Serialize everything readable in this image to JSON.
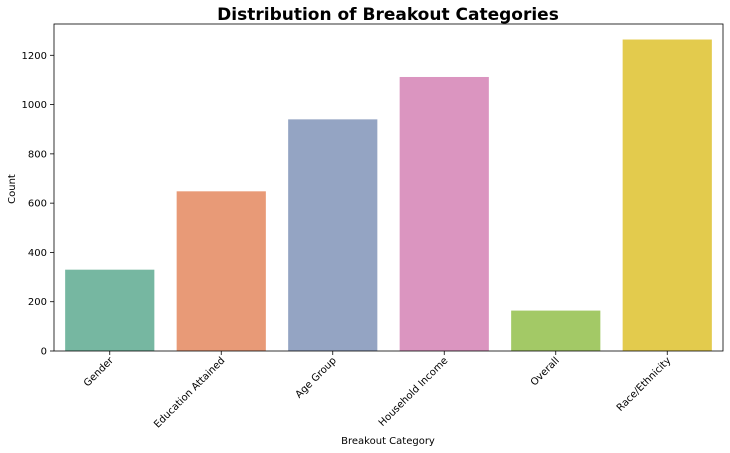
{
  "chart_data": {
    "type": "bar",
    "title": "Distribution of Breakout Categories",
    "xlabel": "Breakout Category",
    "ylabel": "Count",
    "categories": [
      "Gender",
      "Education Attained",
      "Age Group",
      "Household Income",
      "Overall",
      "Race/Ethnicity"
    ],
    "values": [
      330,
      648,
      940,
      1112,
      164,
      1264
    ],
    "colors": [
      "#76b7a1",
      "#e89a77",
      "#94a4c3",
      "#db95c0",
      "#a3c966",
      "#e3cb4d"
    ],
    "ylim": [
      0,
      1327
    ],
    "yticks": [
      0,
      200,
      400,
      600,
      800,
      1000,
      1200
    ],
    "grid": false,
    "legend": "none"
  }
}
